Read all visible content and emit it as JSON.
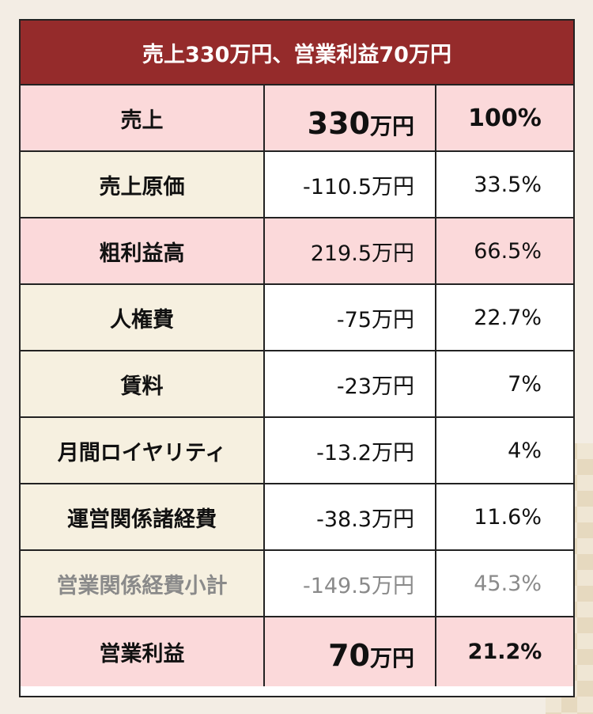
{
  "header": {
    "title": "売上330万円、営業利益70万円"
  },
  "rows": [
    {
      "label": "売上",
      "amount_num": "330",
      "amount_unit": "万円",
      "percent": "100%"
    },
    {
      "label": "売上原価",
      "amount": "-110.5万円",
      "percent": "33.5%"
    },
    {
      "label": "粗利益高",
      "amount": "219.5万円",
      "percent": "66.5%"
    },
    {
      "label": "人権費",
      "amount": "-75万円",
      "percent": "22.7%"
    },
    {
      "label": "賃料",
      "amount": "-23万円",
      "percent": "7%"
    },
    {
      "label": "月間ロイヤリティ",
      "amount": "-13.2万円",
      "percent": "4%"
    },
    {
      "label": "運営関係諸経費",
      "amount": "-38.3万円",
      "percent": "11.6%"
    },
    {
      "label": "営業関係経費小計",
      "amount": "-149.5万円",
      "percent": "45.3%"
    },
    {
      "label": "営業利益",
      "amount_num": "70",
      "amount_unit": "万円",
      "percent": "21.2%"
    }
  ],
  "colors": {
    "header_bg": "#952b2b",
    "pink": "#fbd9da",
    "cream": "#f6f0e0",
    "muted_text": "#8a8a8a"
  }
}
